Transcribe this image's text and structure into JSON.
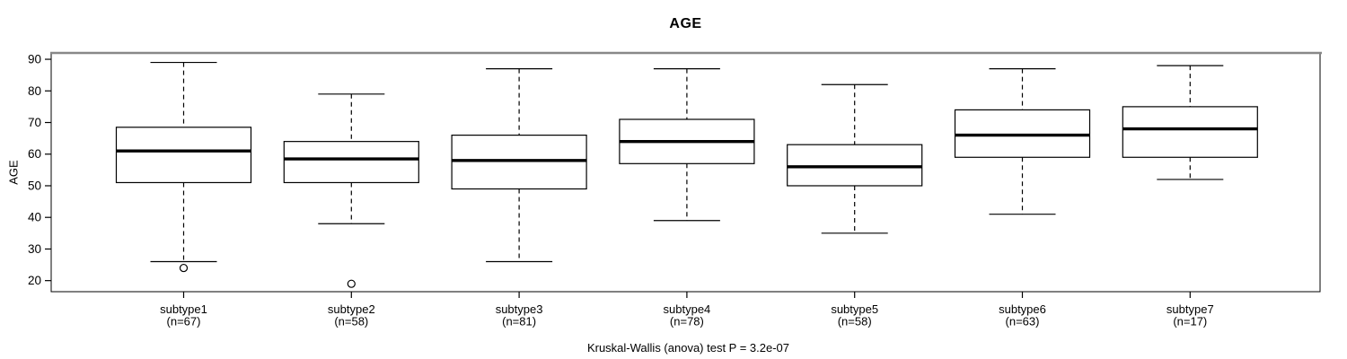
{
  "chart_data": {
    "type": "boxplot",
    "title": "AGE",
    "ylabel": "AGE",
    "footer": "Kruskal-Wallis (anova) test P = 3.2e-07",
    "ylim": [
      16.5,
      92
    ],
    "yticks": [
      20,
      30,
      40,
      50,
      60,
      70,
      80,
      90
    ],
    "grid": false,
    "groups": [
      {
        "label": "subtype1",
        "n_label": "(n=67)",
        "whisker_low": 26,
        "q1": 51,
        "median": 61,
        "q3": 68.5,
        "whisker_high": 89,
        "outliers": [
          24
        ]
      },
      {
        "label": "subtype2",
        "n_label": "(n=58)",
        "whisker_low": 38,
        "q1": 51,
        "median": 58.5,
        "q3": 64,
        "whisker_high": 79,
        "outliers": [
          19
        ]
      },
      {
        "label": "subtype3",
        "n_label": "(n=81)",
        "whisker_low": 26,
        "q1": 49,
        "median": 58,
        "q3": 66,
        "whisker_high": 87,
        "outliers": []
      },
      {
        "label": "subtype4",
        "n_label": "(n=78)",
        "whisker_low": 39,
        "q1": 57,
        "median": 64,
        "q3": 71,
        "whisker_high": 87,
        "outliers": []
      },
      {
        "label": "subtype5",
        "n_label": "(n=58)",
        "whisker_low": 35,
        "q1": 50,
        "median": 56,
        "q3": 63,
        "whisker_high": 82,
        "outliers": []
      },
      {
        "label": "subtype6",
        "n_label": "(n=63)",
        "whisker_low": 41,
        "q1": 59,
        "median": 66,
        "q3": 74,
        "whisker_high": 87,
        "outliers": []
      },
      {
        "label": "subtype7",
        "n_label": "(n=17)",
        "whisker_low": 52,
        "q1": 59,
        "median": 68,
        "q3": 75,
        "whisker_high": 88,
        "outliers": []
      }
    ],
    "colors": {
      "line": "#000000",
      "box_fill": "#ffffff",
      "border_top": "#888888",
      "text": "#000000",
      "background": "#ffffff"
    }
  }
}
